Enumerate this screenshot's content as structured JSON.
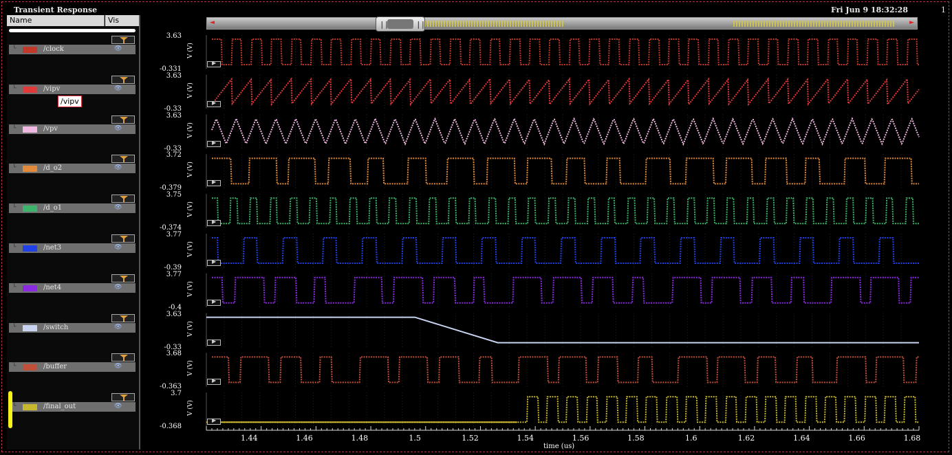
{
  "window": {
    "title": "Transient Response",
    "date": "Fri Jun 9 18:32:28",
    "page_number": "1"
  },
  "browser": {
    "col_name": "Name",
    "col_vis": "Vis",
    "tooltip": "/vipv"
  },
  "signals": [
    {
      "name": "/clock",
      "color": "#c0392b",
      "ymax": "3.63",
      "ymin": "-0.331",
      "unit": "V (V)",
      "wave": "square",
      "period": 0.00725,
      "phase": 0.0
    },
    {
      "name": "/vipv",
      "color": "#e03a3a",
      "ymax": "3.63",
      "ymin": "-0.33",
      "unit": "V (V)",
      "wave": "saw",
      "period": 0.00725,
      "phase": 0.0
    },
    {
      "name": "/vpv",
      "color": "#f0b8e0",
      "ymax": "3.63",
      "ymin": "-0.33",
      "unit": "V (V)",
      "wave": "tri",
      "period": 0.00725,
      "phase": 0.002
    },
    {
      "name": "/d_o2",
      "color": "#e08a3a",
      "ymax": "3.72",
      "ymin": "-0.379",
      "unit": "V (V)",
      "wave": "pwm",
      "period": 0.0145,
      "phase": 0.001
    },
    {
      "name": "/d_o1",
      "color": "#3db36b",
      "ymax": "3.75",
      "ymin": "-0.374",
      "unit": "V (V)",
      "wave": "pulse",
      "period": 0.00725,
      "phase": 0.0005
    },
    {
      "name": "/net3",
      "color": "#2040e8",
      "ymax": "3.77",
      "ymin": "-0.39",
      "unit": "V (V)",
      "wave": "pulse",
      "period": 0.0145,
      "phase": 0.003
    },
    {
      "name": "/net4",
      "color": "#8a2be2",
      "ymax": "3.77",
      "ymin": "-0.4",
      "unit": "V (V)",
      "wave": "pwm2",
      "period": 0.0145,
      "phase": 0.006
    },
    {
      "name": "/switch",
      "color": "#c8d4f0",
      "ymax": "3.63",
      "ymin": "-0.33",
      "unit": "V (V)",
      "wave": "ramp",
      "period": 0.0,
      "phase": 0.0
    },
    {
      "name": "/buffer",
      "color": "#c0503a",
      "ymax": "3.68",
      "ymin": "-0.363",
      "unit": "V (V)",
      "wave": "pwm2",
      "period": 0.0145,
      "phase": 0.004
    },
    {
      "name": "/final_out",
      "color": "#c8b830",
      "ymax": "3.7",
      "ymin": "-0.368",
      "unit": "V (V)",
      "wave": "late",
      "period": 0.00725,
      "phase": 0.001
    }
  ],
  "chart_data": {
    "type": "line",
    "xlabel": "time (us)",
    "x_ticks": [
      "1.44",
      "1.46",
      "1.48",
      "1.5",
      "1.52",
      "1.54",
      "1.56",
      "1.58",
      "1.6",
      "1.62",
      "1.64",
      "1.66",
      "1.68"
    ],
    "xlim": [
      1.4245,
      1.6825
    ],
    "switch_ramp": {
      "start": 1.5,
      "end": 1.53,
      "high": 3.63,
      "low": -0.33
    },
    "final_out_start": 1.537
  }
}
